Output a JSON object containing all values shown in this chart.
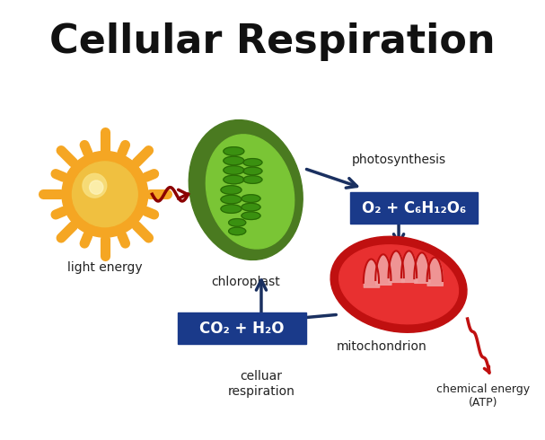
{
  "title": "Cellular Respiration",
  "title_fontsize": 32,
  "title_fontweight": "bold",
  "background_color": "#ffffff",
  "labels": {
    "light_energy": "light energy",
    "chloroplast": "chloroplast",
    "photosynthesis": "photosynthesis",
    "o2_formula": "O₂ + C₆H₁₂O₆",
    "co2_formula": "CO₂ + H₂O",
    "mitochondrion": "mitochondrion",
    "celluar_respiration": "celluar\nrespiration",
    "chemical_energy": "chemical energy\n(ATP)"
  },
  "formula_box_color": "#1a3a8a",
  "formula_text_color": "#ffffff",
  "arrow_color": "#1a3060",
  "sun_outer_color": "#f5a623",
  "sun_inner_color": "#f0c040",
  "sun_center_color": "#f8e080",
  "sun_ray_color": "#f5a623",
  "chloroplast_outer": "#4a7a20",
  "chloroplast_inner": "#6ab030",
  "mito_outer": "#c01010",
  "mito_inner": "#e02020",
  "mito_light": "#f07070",
  "red_arrow_color": "#8b0000"
}
